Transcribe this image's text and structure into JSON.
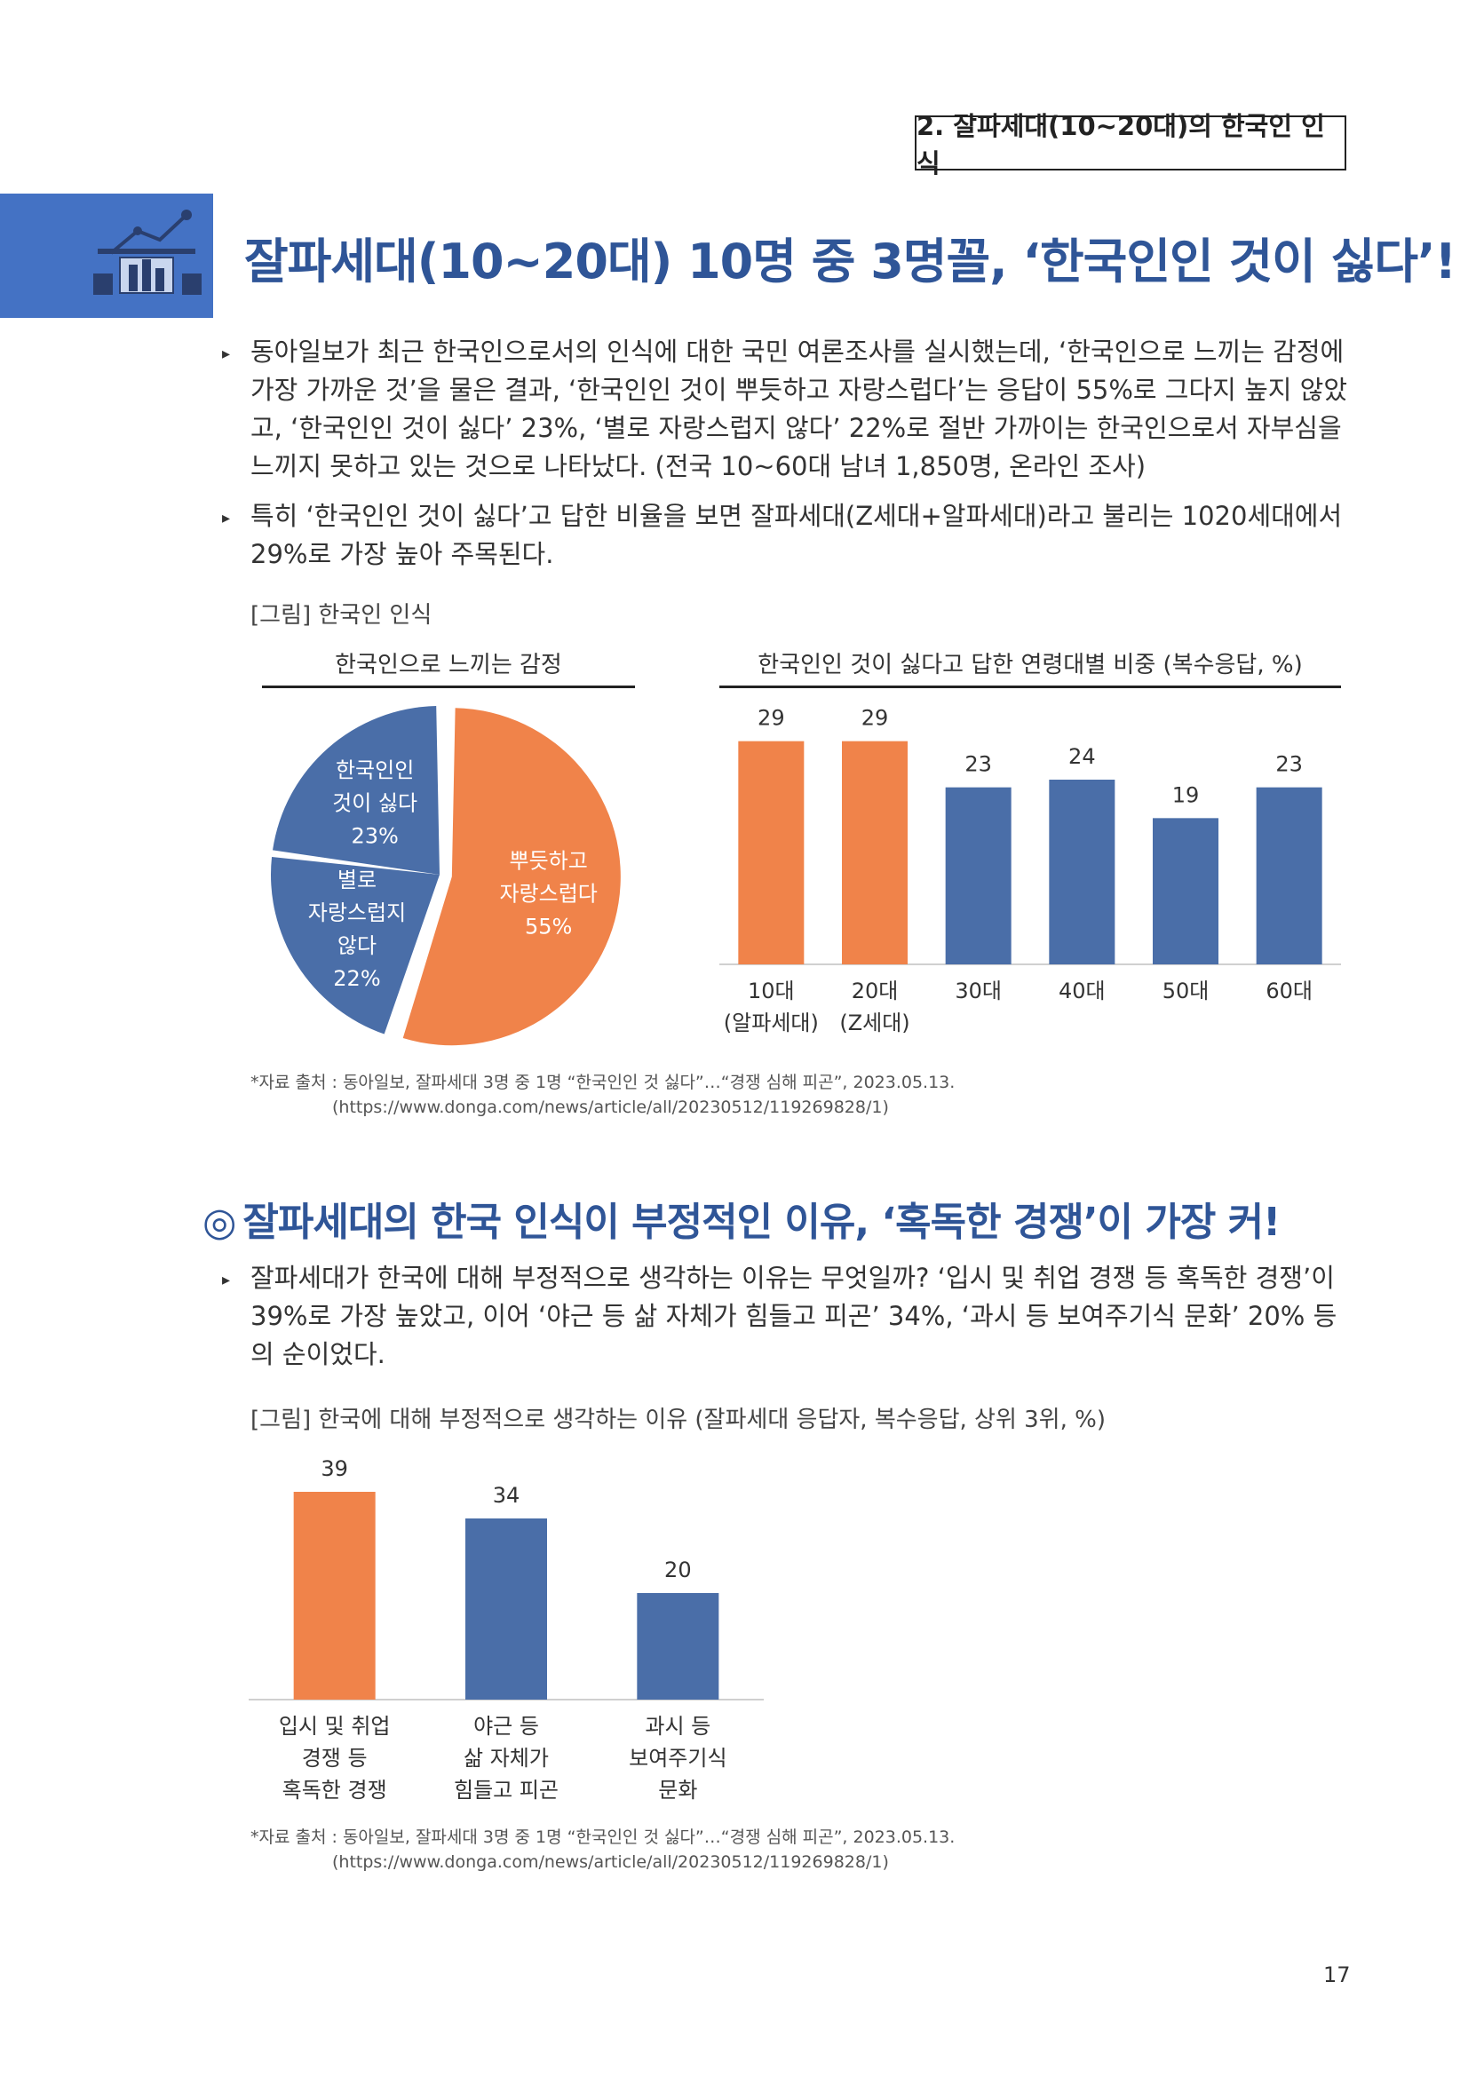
{
  "header": {
    "section_tag": "2. 잘파세대(10~20대)의 한국인 인식"
  },
  "banner": {
    "icon": "chart-presentation-icon",
    "color": "#4472c4"
  },
  "title": "잘파세대(10~20대) 10명 중 3명꼴, ‘한국인인 것이 싫다’!",
  "paragraphs": [
    "동아일보가 최근 한국인으로서의 인식에 대한 국민 여론조사를 실시했는데, ‘한국인으로 느끼는 감정에 가장 가까운 것’을 물은 결과, ‘한국인인 것이 뿌듯하고 자랑스럽다’는 응답이 55%로 그다지 높지 않았고, ‘한국인인 것이 싫다’ 23%, ‘별로 자랑스럽지 않다’ 22%로 절반 가까이는 한국인으로서 자부심을 느끼지 못하고 있는 것으로 나타났다. (전국 10~60대 남녀 1,850명, 온라인 조사)",
    "특히 ‘한국인인 것이 싫다’고 답한 비율을 보면 잘파세대(Z세대+알파세대)라고 불리는 1020세대에서 29%로 가장 높아 주목된다."
  ],
  "figure1": {
    "caption": "[그림] 한국인 인식",
    "source_line": "*자료 출처 : 동아일보, 잘파세대 3명 중 1명 “한국인인 것 싫다”…“경쟁 심해 피곤”, 2023.05.13.",
    "source_url": "(https://www.donga.com/news/article/all/20230512/119269828/1)"
  },
  "section2": {
    "heading_mark": "◎",
    "heading": "잘파세대의 한국 인식이 부정적인 이유, ‘혹독한 경쟁’이 가장 커!",
    "paragraph": "잘파세대가 한국에 대해 부정적으로 생각하는 이유는 무엇일까? ‘입시 및 취업 경쟁 등 혹독한 경쟁’이 39%로 가장 높았고, 이어 ‘야근 등 삶 자체가 힘들고 피곤’ 34%, ‘과시 등 보여주기식 문화’ 20% 등의 순이었다.",
    "figure_caption": "[그림] 한국에 대해 부정적으로 생각하는 이유 (잘파세대 응답자, 복수응답, 상위 3위, %)",
    "source_line": "*자료 출처 : 동아일보, 잘파세대 3명 중 1명 “한국인인 것 싫다”…“경쟁 심해 피곤”, 2023.05.13.",
    "source_url": "(https://www.donga.com/news/article/all/20230512/119269828/1)"
  },
  "page_number": "17",
  "colors": {
    "orange": "#f0834a",
    "blue": "#4a6ea8",
    "title_blue": "#2f5597"
  },
  "chart_data": [
    {
      "type": "pie",
      "title": "한국인으로 느끼는 감정",
      "slices": [
        {
          "label_lines": [
            "뿌듯하고",
            "자랑스럽다",
            "55%"
          ],
          "value": 55,
          "color": "#f0834a",
          "exploded": true
        },
        {
          "label_lines": [
            "별로",
            "자랑스럽지",
            "않다",
            "22%"
          ],
          "value": 22,
          "color": "#4a6ea8",
          "exploded": false
        },
        {
          "label_lines": [
            "한국인인",
            "것이 싫다",
            "23%"
          ],
          "value": 23,
          "color": "#4a6ea8",
          "exploded": false
        }
      ]
    },
    {
      "type": "bar",
      "title": "한국인인 것이 싫다고 답한 연령대별 비중 (복수응답, %)",
      "categories": [
        [
          "10대",
          "(알파세대)"
        ],
        [
          "20대",
          "(Z세대)"
        ],
        [
          "30대"
        ],
        [
          "40대"
        ],
        [
          "50대"
        ],
        [
          "60대"
        ]
      ],
      "values": [
        29,
        29,
        23,
        24,
        19,
        23
      ],
      "colors": [
        "#f0834a",
        "#f0834a",
        "#4a6ea8",
        "#4a6ea8",
        "#4a6ea8",
        "#4a6ea8"
      ],
      "ylim": [
        0,
        30
      ]
    },
    {
      "type": "bar",
      "title": "",
      "categories": [
        [
          "입시 및 취업",
          "경쟁 등",
          "혹독한 경쟁"
        ],
        [
          "야근 등",
          "삶 자체가",
          "힘들고 피곤"
        ],
        [
          "과시 등",
          "보여주기식",
          "문화"
        ]
      ],
      "values": [
        39,
        34,
        20
      ],
      "colors": [
        "#f0834a",
        "#4a6ea8",
        "#4a6ea8"
      ],
      "ylim": [
        0,
        40
      ]
    }
  ]
}
